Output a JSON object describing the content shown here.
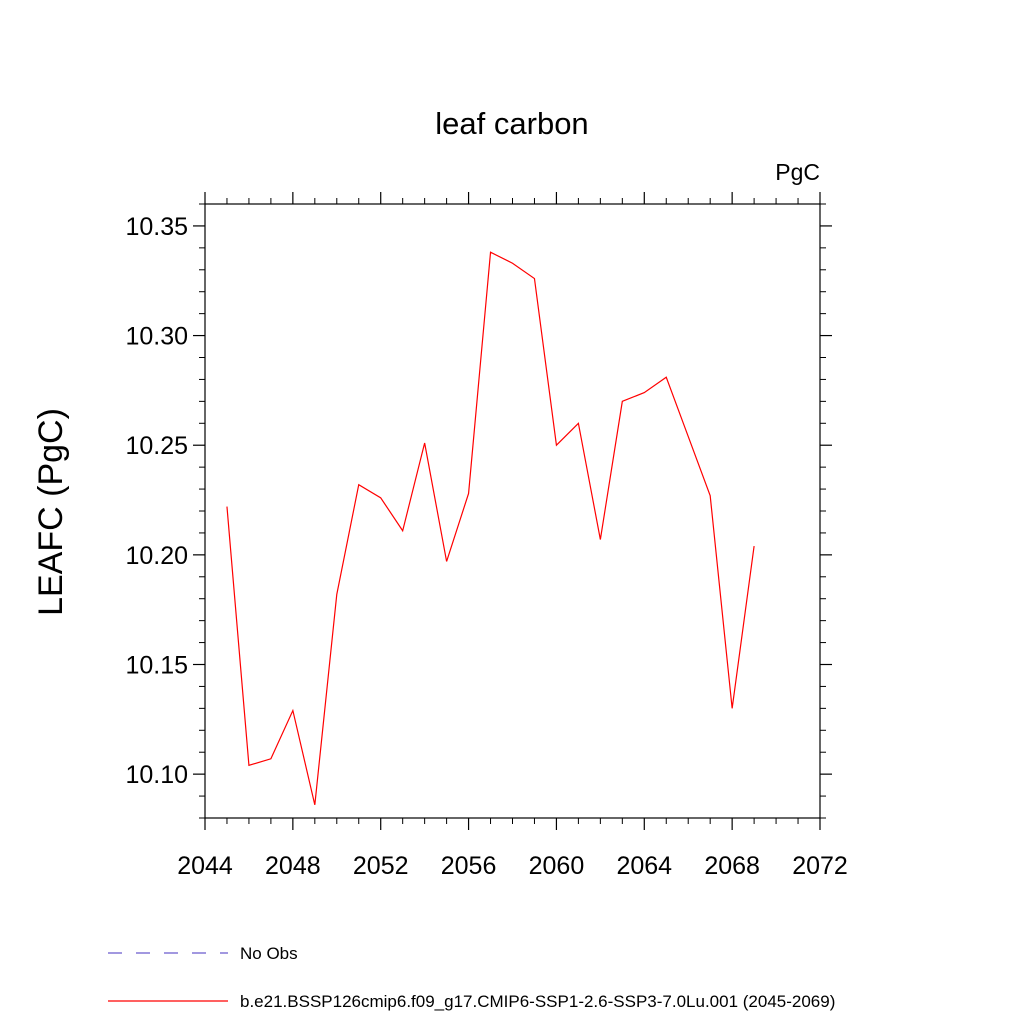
{
  "chart_data": {
    "type": "line",
    "title": "leaf carbon",
    "units_label": "PgC",
    "ylabel": "LEAFC  (PgC)",
    "xlabel": "",
    "xlim": [
      2044,
      2072
    ],
    "ylim": [
      10.08,
      10.36
    ],
    "x_ticks": [
      "2044",
      "2048",
      "2052",
      "2056",
      "2060",
      "2064",
      "2068",
      "2072"
    ],
    "y_ticks": [
      "10.10",
      "10.15",
      "10.20",
      "10.25",
      "10.30",
      "10.35"
    ],
    "grid": false,
    "legend_placement": "bottom",
    "series": [
      {
        "name": "b.e21.BSSP126cmip6.f09_g17.CMIP6-SSP1-2.6-SSP3-7.0Lu.001 (2045-2069)",
        "color": "#ff0000",
        "style": "solid",
        "x": [
          2045,
          2046,
          2047,
          2048,
          2049,
          2050,
          2051,
          2052,
          2053,
          2054,
          2055,
          2056,
          2057,
          2058,
          2059,
          2060,
          2061,
          2062,
          2063,
          2064,
          2065,
          2066,
          2067,
          2068,
          2069
        ],
        "y": [
          10.222,
          10.104,
          10.107,
          10.129,
          10.086,
          10.182,
          10.232,
          10.226,
          10.211,
          10.251,
          10.197,
          10.228,
          10.338,
          10.333,
          10.326,
          10.25,
          10.26,
          10.207,
          10.27,
          10.274,
          10.281,
          10.254,
          10.227,
          10.13,
          10.204
        ]
      }
    ],
    "legend": [
      {
        "label": "No Obs",
        "color": "#6a5acd",
        "style": "dashed"
      },
      {
        "label": "b.e21.BSSP126cmip6.f09_g17.CMIP6-SSP1-2.6-SSP3-7.0Lu.001 (2045-2069)",
        "color": "#ff0000",
        "style": "solid"
      }
    ]
  }
}
